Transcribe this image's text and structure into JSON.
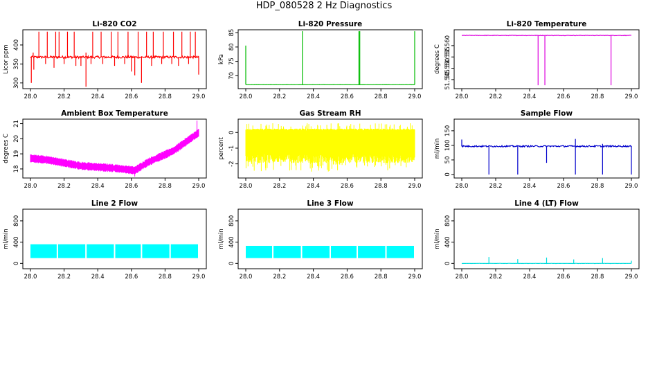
{
  "page": {
    "title": "HDP_080528  2 Hz Diagnostics"
  },
  "chart_data": [
    {
      "type": "line",
      "title": "Li-820 CO2",
      "ylabel": "Licor ppm",
      "color": "#ff0000",
      "xlim": [
        28.0,
        29.0
      ],
      "ylim": [
        285,
        440
      ],
      "xticks": [
        "28.0",
        "28.2",
        "28.4",
        "28.6",
        "28.8",
        "29.0"
      ],
      "yticks": [
        "300",
        "350",
        "400"
      ],
      "series": [
        {
          "baseline": 368,
          "noise": 3,
          "spikes_up": [
            [
              28.016,
              380
            ],
            [
              28.05,
              435
            ],
            [
              28.1,
              435
            ],
            [
              28.15,
              435
            ],
            [
              28.17,
              435
            ],
            [
              28.22,
              435
            ],
            [
              28.26,
              435
            ],
            [
              28.33,
              380
            ],
            [
              28.37,
              435
            ],
            [
              28.42,
              435
            ],
            [
              28.48,
              435
            ],
            [
              28.52,
              435
            ],
            [
              28.58,
              435
            ],
            [
              28.64,
              435
            ],
            [
              28.69,
              435
            ],
            [
              28.73,
              435
            ],
            [
              28.79,
              435
            ],
            [
              28.85,
              435
            ],
            [
              28.9,
              435
            ],
            [
              28.95,
              435
            ],
            [
              28.98,
              435
            ]
          ],
          "spikes_down": [
            [
              28.005,
              300
            ],
            [
              28.02,
              335
            ],
            [
              28.09,
              350
            ],
            [
              28.14,
              340
            ],
            [
              28.2,
              350
            ],
            [
              28.27,
              345
            ],
            [
              28.3,
              345
            ],
            [
              28.33,
              290
            ],
            [
              28.36,
              350
            ],
            [
              28.43,
              350
            ],
            [
              28.5,
              345
            ],
            [
              28.56,
              350
            ],
            [
              28.6,
              330
            ],
            [
              28.62,
              320
            ],
            [
              28.66,
              300
            ],
            [
              28.72,
              345
            ],
            [
              28.78,
              350
            ],
            [
              28.84,
              350
            ],
            [
              28.88,
              345
            ],
            [
              28.94,
              350
            ],
            [
              29.0,
              322
            ]
          ]
        }
      ]
    },
    {
      "type": "line",
      "title": "Li-820 Pressure",
      "ylabel": "kPa",
      "color": "#00bb00",
      "xlim": [
        28.0,
        29.0
      ],
      "ylim": [
        65.5,
        86
      ],
      "xticks": [
        "28.0",
        "28.2",
        "28.4",
        "28.6",
        "28.8",
        "29.0"
      ],
      "yticks": [
        "70",
        "75",
        "80",
        "85"
      ],
      "series": [
        {
          "baseline": 66.9,
          "noise": 0.05,
          "spikes_up": [
            [
              28.0,
              80.5
            ],
            [
              28.335,
              85.5
            ],
            [
              28.67,
              85.5
            ],
            [
              28.675,
              85.5
            ],
            [
              29.0,
              85.5
            ]
          ],
          "spikes_down": []
        }
      ]
    },
    {
      "type": "line",
      "title": "Li-820 Temperature",
      "ylabel": "degrees C",
      "color": "#dd00dd",
      "xlim": [
        28.0,
        29.0
      ],
      "ylim": [
        51.541,
        51.567
      ],
      "xticks": [
        "28.0",
        "28.2",
        "28.4",
        "28.6",
        "28.8",
        "29.0"
      ],
      "yticks": [
        "51.545",
        "51.550",
        "51.555",
        "51.560"
      ],
      "series": [
        {
          "baseline": 51.5645,
          "noise": 0.0001,
          "spikes_up": [],
          "spikes_down": [
            [
              28.45,
              51.5425
            ],
            [
              28.49,
              51.5425
            ],
            [
              28.88,
              51.5425
            ]
          ]
        }
      ]
    },
    {
      "type": "line",
      "title": "Ambient Box Temperature",
      "ylabel": "degrees C",
      "color": "#ff00ff",
      "xlim": [
        28.0,
        29.0
      ],
      "ylim": [
        17.4,
        21.3
      ],
      "xticks": [
        "28.0",
        "28.2",
        "28.4",
        "28.6",
        "28.8",
        "29.0"
      ],
      "yticks": [
        "18",
        "19",
        "20",
        "21"
      ],
      "series": [
        {
          "trend": [
            [
              28.0,
              18.7
            ],
            [
              28.1,
              18.6
            ],
            [
              28.3,
              18.2
            ],
            [
              28.5,
              18.05
            ],
            [
              28.62,
              17.9
            ],
            [
              28.7,
              18.45
            ],
            [
              28.85,
              19.2
            ],
            [
              29.0,
              20.4
            ]
          ],
          "band": 0.55,
          "spikes_up": [
            [
              28.99,
              21.2
            ]
          ],
          "spikes_down": [
            [
              28.62,
              17.5
            ]
          ]
        }
      ]
    },
    {
      "type": "line",
      "title": "Gas Stream RH",
      "ylabel": "percent",
      "color": "#ffff00",
      "xlim": [
        28.0,
        29.0
      ],
      "ylim": [
        -2.9,
        0.85
      ],
      "xticks": [
        "28.0",
        "28.2",
        "28.4",
        "28.6",
        "28.8",
        "29.0"
      ],
      "yticks": [
        "-2",
        "-1",
        "0"
      ],
      "series": [
        {
          "baseline": -1.0,
          "band_high": 0.25,
          "band_low": -1.95,
          "peak_high": 0.6,
          "peak_low": -2.5
        }
      ]
    },
    {
      "type": "line",
      "title": "Sample Flow",
      "ylabel": "ml/min",
      "color": "#0000cc",
      "xlim": [
        28.0,
        29.0
      ],
      "ylim": [
        -12,
        190
      ],
      "xticks": [
        "28.0",
        "28.2",
        "28.4",
        "28.6",
        "28.8",
        "29.0"
      ],
      "yticks": [
        "0",
        "50",
        "100",
        "150"
      ],
      "series": [
        {
          "baseline": 97,
          "noise": 2.5,
          "spikes_up": [
            [
              28.0,
              120
            ],
            [
              28.67,
              122
            ],
            [
              28.83,
              105
            ]
          ],
          "spikes_down": [
            [
              28.16,
              0
            ],
            [
              28.33,
              0
            ],
            [
              28.5,
              40
            ],
            [
              28.67,
              0
            ],
            [
              28.83,
              0
            ],
            [
              29.0,
              0
            ]
          ]
        }
      ]
    },
    {
      "type": "area",
      "title": "Line 2 Flow",
      "ylabel": "ml/min",
      "color": "#00ffff",
      "xlim": [
        28.0,
        29.0
      ],
      "ylim": [
        -100,
        1020
      ],
      "xticks": [
        "28.0",
        "28.2",
        "28.4",
        "28.6",
        "28.8",
        "29.0"
      ],
      "yticks": [
        "0",
        "400",
        "800"
      ],
      "series": [
        {
          "low": 100,
          "high": 360,
          "gaps": [
            28.16,
            28.33,
            28.5,
            28.66,
            28.83
          ]
        }
      ]
    },
    {
      "type": "area",
      "title": "Line 3 Flow",
      "ylabel": "ml/min",
      "color": "#00ffff",
      "xlim": [
        28.0,
        29.0
      ],
      "ylim": [
        -100,
        1020
      ],
      "xticks": [
        "28.0",
        "28.2",
        "28.4",
        "28.6",
        "28.8",
        "29.0"
      ],
      "yticks": [
        "0",
        "400",
        "800"
      ],
      "series": [
        {
          "low": 100,
          "high": 330,
          "gaps": [
            28.16,
            28.33,
            28.5,
            28.66,
            28.83
          ]
        }
      ]
    },
    {
      "type": "line",
      "title": "Line 4 (LT) Flow",
      "ylabel": "ml/min",
      "color": "#00dddd",
      "xlim": [
        28.0,
        29.0
      ],
      "ylim": [
        -100,
        1020
      ],
      "xticks": [
        "28.0",
        "28.2",
        "28.4",
        "28.6",
        "28.8",
        "29.0"
      ],
      "yticks": [
        "0",
        "400",
        "800"
      ],
      "series": [
        {
          "baseline": 0,
          "noise": 2,
          "spikes_up": [
            [
              28.16,
              120
            ],
            [
              28.33,
              80
            ],
            [
              28.5,
              110
            ],
            [
              28.66,
              75
            ],
            [
              28.83,
              100
            ],
            [
              29.0,
              50
            ]
          ],
          "spikes_down": []
        }
      ]
    }
  ]
}
